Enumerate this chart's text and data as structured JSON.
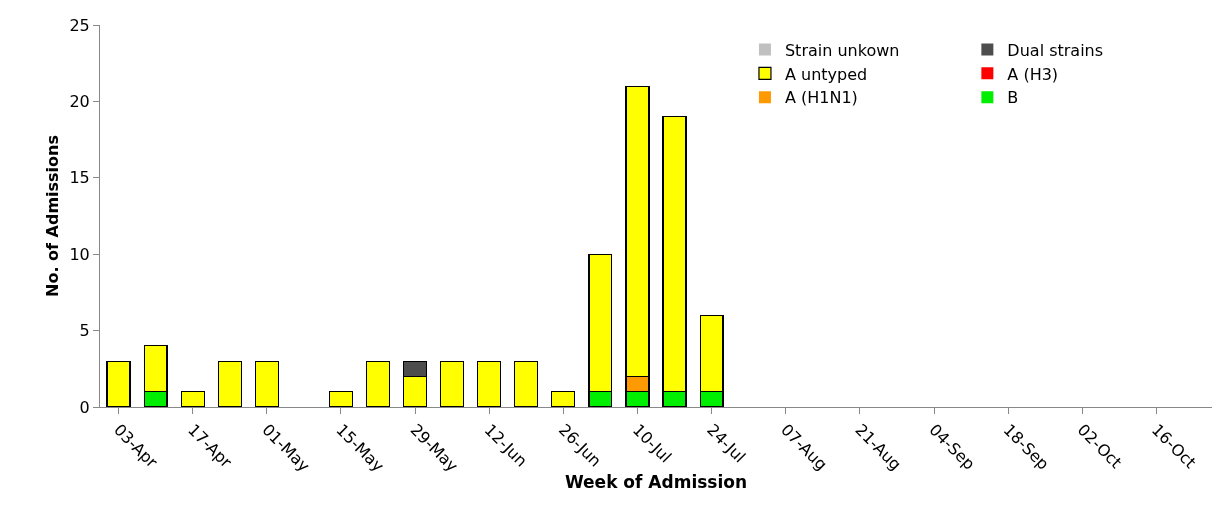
{
  "chart_data": {
    "type": "bar",
    "stacked": true,
    "xlabel": "Week of Admission",
    "ylabel": "No. of Admissions",
    "categories": [
      "03-Apr",
      null,
      "17-Apr",
      null,
      "01-May",
      null,
      "15-May",
      null,
      "29-May",
      null,
      "12-Jun",
      null,
      "26-Jun",
      null,
      "10-Jul",
      null,
      "24-Jul",
      null,
      "07-Aug",
      null,
      "21-Aug",
      null,
      "04-Sep",
      null,
      "18-Sep",
      null,
      "02-Oct",
      null,
      "16-Oct",
      null
    ],
    "series": [
      {
        "name": "B",
        "color": "#00ee00",
        "values": [
          0,
          1,
          0,
          0,
          0,
          0,
          0,
          0,
          0,
          0,
          0,
          0,
          0,
          1,
          1,
          1,
          1,
          0,
          0,
          0,
          0,
          0,
          0,
          0,
          0,
          0,
          0,
          0,
          0,
          0
        ]
      },
      {
        "name": "A (H1N1)",
        "color": "#ff9900",
        "values": [
          0,
          0,
          0,
          0,
          0,
          0,
          0,
          0,
          0,
          0,
          0,
          0,
          0,
          0,
          1,
          0,
          0,
          0,
          0,
          0,
          0,
          0,
          0,
          0,
          0,
          0,
          0,
          0,
          0,
          0
        ]
      },
      {
        "name": "A (H3)",
        "color": "#ff0000",
        "values": [
          0,
          0,
          0,
          0,
          0,
          0,
          0,
          0,
          0,
          0,
          0,
          0,
          0,
          0,
          0,
          0,
          0,
          0,
          0,
          0,
          0,
          0,
          0,
          0,
          0,
          0,
          0,
          0,
          0,
          0
        ]
      },
      {
        "name": "A untyped",
        "color": "#ffff00",
        "values": [
          3,
          3,
          1,
          3,
          3,
          0,
          1,
          3,
          2,
          3,
          3,
          3,
          1,
          9,
          19,
          18,
          5,
          0,
          0,
          0,
          0,
          0,
          0,
          0,
          0,
          0,
          0,
          0,
          0,
          0
        ]
      },
      {
        "name": "Dual strains",
        "color": "#4d4d4d",
        "values": [
          0,
          0,
          0,
          0,
          0,
          0,
          0,
          0,
          1,
          0,
          0,
          0,
          0,
          0,
          0,
          0,
          0,
          0,
          0,
          0,
          0,
          0,
          0,
          0,
          0,
          0,
          0,
          0,
          0,
          0
        ]
      },
      {
        "name": "Strain unkown",
        "color": "#c0c0c0",
        "values": [
          0,
          0,
          0,
          0,
          0,
          0,
          0,
          0,
          0,
          0,
          0,
          0,
          0,
          0,
          0,
          0,
          0,
          0,
          0,
          0,
          0,
          0,
          0,
          0,
          0,
          0,
          0,
          0,
          0,
          0
        ]
      }
    ],
    "ylim": [
      0,
      25
    ],
    "yticks": [
      0,
      5,
      10,
      15,
      20,
      25
    ],
    "grid": false,
    "legend": "top right"
  }
}
